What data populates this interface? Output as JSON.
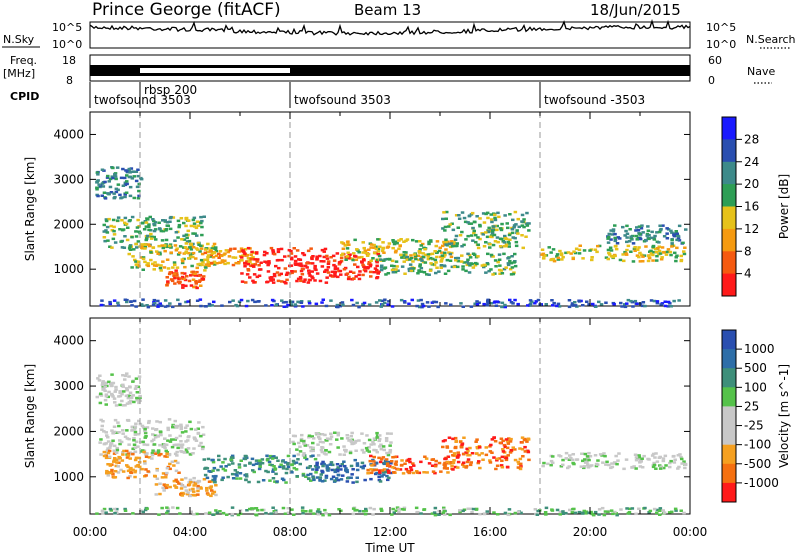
{
  "header": {
    "station": "Prince George (fitACF)",
    "beam": "Beam 13",
    "date": "18/Jun/2015"
  },
  "strip_labels": {
    "nsky": "N.Sky",
    "nsky_ticks": [
      "10^5",
      "10^0"
    ],
    "nsearch": "N.Search",
    "nsearch_ticks": [
      "10^5",
      "10^0"
    ],
    "freq": "Freq.",
    "freq_unit": "[MHz]",
    "freq_ticks": [
      "18",
      "8"
    ],
    "nave": "Nave",
    "nave_ticks": [
      "60",
      "0"
    ],
    "cpid": "CPID"
  },
  "cpid_segments": [
    {
      "label": "twofsound 3503",
      "start_hour": 0
    },
    {
      "label": "rbsp 200",
      "start_hour": 2
    },
    {
      "label": "twofsound 3503",
      "start_hour": 8
    },
    {
      "label": "twofsound -3503",
      "start_hour": 18
    }
  ],
  "colors": {
    "power_scale": [
      "#1a1aff",
      "#2a4fb0",
      "#3d8a8a",
      "#2e9e55",
      "#e6c21a",
      "#f59a10",
      "#f55a10",
      "#ff1a1a"
    ],
    "velocity_scale": [
      "#2a4fb0",
      "#2e6ea8",
      "#3e8f7a",
      "#55c24a",
      "#c8c8c8",
      "#c8c8c8",
      "#f5a020",
      "#f57010",
      "#ff1a1a"
    ]
  },
  "chart_data": [
    {
      "type": "heatmap",
      "panel": "power",
      "ylabel": "Slant Range [km]",
      "xlabel": "Time UT",
      "x_ticks": [
        "00:00",
        "04:00",
        "08:00",
        "12:00",
        "16:00",
        "20:00",
        "00:00"
      ],
      "xlim_hours": [
        0,
        24
      ],
      "ylim": [
        180,
        4500
      ],
      "y_ticks": [
        1000,
        2000,
        3000,
        4000
      ],
      "colorbar": {
        "label": "Power [dB]",
        "ticks": [
          4,
          8,
          12,
          16,
          20,
          24,
          28
        ]
      },
      "regions": [
        {
          "t0": 0.2,
          "t1": 2.0,
          "r0": 2600,
          "r1": 3300,
          "level": 2
        },
        {
          "t0": 0.5,
          "t1": 4.5,
          "r0": 1500,
          "r1": 2200,
          "level": 3
        },
        {
          "t0": 1.5,
          "t1": 5.0,
          "r0": 1000,
          "r1": 1600,
          "level": 4
        },
        {
          "t0": 3.0,
          "t1": 4.5,
          "r0": 600,
          "r1": 1000,
          "level": 6
        },
        {
          "t0": 4.5,
          "t1": 6.5,
          "r0": 1100,
          "r1": 1500,
          "level": 5
        },
        {
          "t0": 6.0,
          "t1": 9.5,
          "r0": 700,
          "r1": 1500,
          "level": 7
        },
        {
          "t0": 9.5,
          "t1": 11.5,
          "r0": 800,
          "r1": 1400,
          "level": 7
        },
        {
          "t0": 10.0,
          "t1": 14.5,
          "r0": 1200,
          "r1": 1700,
          "level": 4
        },
        {
          "t0": 11.5,
          "t1": 17.0,
          "r0": 900,
          "r1": 1400,
          "level": 3
        },
        {
          "t0": 14.0,
          "t1": 17.5,
          "r0": 1500,
          "r1": 2300,
          "level": 3
        },
        {
          "t0": 18.0,
          "t1": 23.8,
          "r0": 1200,
          "r1": 1550,
          "level": 4
        },
        {
          "t0": 20.5,
          "t1": 23.8,
          "r0": 1600,
          "r1": 2000,
          "level": 2
        },
        {
          "t0": 0.0,
          "t1": 24.0,
          "r0": 180,
          "r1": 350,
          "level": 1
        }
      ]
    },
    {
      "type": "heatmap",
      "panel": "velocity",
      "ylabel": "Slant Range [km]",
      "xlabel": "Time UT",
      "x_ticks": [
        "00:00",
        "04:00",
        "08:00",
        "12:00",
        "16:00",
        "20:00",
        "00:00"
      ],
      "xlim_hours": [
        0,
        24
      ],
      "ylim": [
        180,
        4500
      ],
      "y_ticks": [
        1000,
        2000,
        3000,
        4000
      ],
      "colorbar": {
        "label": "Velocity [m s^-1]",
        "ticks": [
          1000,
          500,
          100,
          25,
          -25,
          -100,
          -500,
          -1000
        ]
      },
      "regions": [
        {
          "t0": 0.2,
          "t1": 2.0,
          "r0": 2600,
          "r1": 3300,
          "level": 4
        },
        {
          "t0": 0.3,
          "t1": 4.5,
          "r0": 1500,
          "r1": 2300,
          "level": 4
        },
        {
          "t0": 0.5,
          "t1": 3.5,
          "r0": 1000,
          "r1": 1600,
          "level": 6
        },
        {
          "t0": 2.5,
          "t1": 5.0,
          "r0": 600,
          "r1": 1000,
          "level": 6
        },
        {
          "t0": 4.5,
          "t1": 9.0,
          "r0": 900,
          "r1": 1500,
          "level": 2
        },
        {
          "t0": 9.0,
          "t1": 12.0,
          "r0": 900,
          "r1": 1400,
          "level": 1
        },
        {
          "t0": 11.0,
          "t1": 14.5,
          "r0": 1100,
          "r1": 1500,
          "level": 7
        },
        {
          "t0": 8.0,
          "t1": 12.0,
          "r0": 1500,
          "r1": 2000,
          "level": 4
        },
        {
          "t0": 14.0,
          "t1": 17.5,
          "r0": 1200,
          "r1": 1900,
          "level": 7
        },
        {
          "t0": 18.0,
          "t1": 23.8,
          "r0": 1200,
          "r1": 1550,
          "level": 4
        },
        {
          "t0": 0.0,
          "t1": 24.0,
          "r0": 180,
          "r1": 350,
          "level": 3
        }
      ]
    }
  ]
}
